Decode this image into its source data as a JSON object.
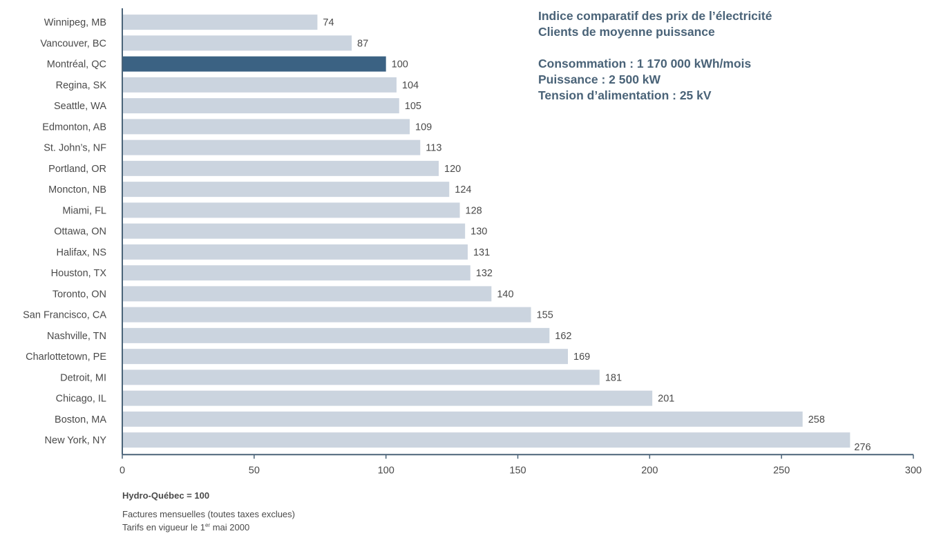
{
  "chart_data": {
    "type": "bar",
    "orientation": "horizontal",
    "title_lines": [
      "Indice comparatif des prix de l’électricité",
      "Clients de moyenne puissance"
    ],
    "details": [
      "Consommation : 1 170 000 kWh/mois",
      "Puissance : 2 500 kW",
      "Tension d’alimentation : 25 kV"
    ],
    "categories": [
      "Winnipeg, MB",
      "Vancouver, BC",
      "Montréal, QC",
      "Regina, SK",
      "Seattle, WA",
      "Edmonton, AB",
      "St. John’s, NF",
      "Portland, OR",
      "Moncton, NB",
      "Miami, FL",
      "Ottawa, ON",
      "Halifax, NS",
      "Houston, TX",
      "Toronto, ON",
      "San Francisco, CA",
      "Nashville, TN",
      "Charlottetown, PE",
      "Detroit, MI",
      "Chicago, IL",
      "Boston, MA",
      "New York, NY"
    ],
    "values": [
      74,
      87,
      100,
      104,
      105,
      109,
      113,
      120,
      124,
      128,
      130,
      131,
      132,
      140,
      155,
      162,
      169,
      181,
      201,
      258,
      276
    ],
    "highlight": "Montréal, QC",
    "xlim": [
      0,
      300
    ],
    "xticks": [
      0,
      50,
      100,
      150,
      200,
      250,
      300
    ],
    "colors": {
      "bar": "#cbd4df",
      "highlight": "#3b6283",
      "axis": "#4a6378",
      "text": "#4a4a4a",
      "title": "#4a6378"
    },
    "grid": false
  },
  "footnotes": {
    "base_label": "Hydro-Québec = 100",
    "line1": "Factures mensuelles (toutes taxes exclues)",
    "line2_prefix": "Tarifs en vigueur le 1",
    "line2_sup": "er",
    "line2_suffix": " mai 2000"
  }
}
